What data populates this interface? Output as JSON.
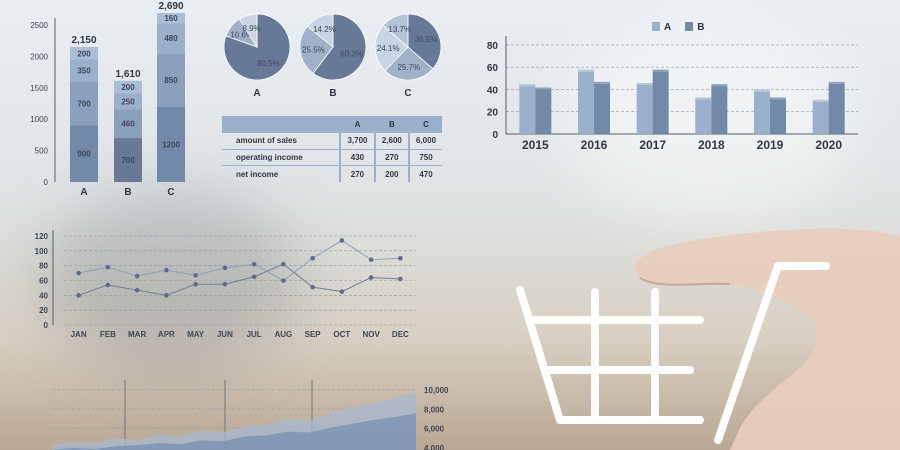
{
  "colors": {
    "bar_dark": "#7389a8",
    "bar_light": "#9ab0cb",
    "line_dark": "#5b6d8a",
    "pie_dark": "#667a98",
    "pie_light": "#9fb2ca",
    "pie_highlight": "#c9d5e4",
    "area_dark": "#7a92b3",
    "area_light": "#a7bad2",
    "basket": "#ffffff"
  },
  "icons": [
    "shopping-basket-icon",
    "hand-photo"
  ],
  "chart_data": [
    {
      "id": "stacked",
      "type": "bar",
      "stacked": true,
      "categories": [
        "A",
        "B",
        "C"
      ],
      "segments": [
        [
          900,
          700,
          350,
          200
        ],
        [
          700,
          460,
          250,
          200
        ],
        [
          1200,
          850,
          480,
          160
        ]
      ],
      "totals": [
        "2,150",
        "1,610",
        "2,690"
      ],
      "yticks": [
        "0",
        "500",
        "1000",
        "1500",
        "2000",
        "2500"
      ],
      "ylim": [
        0,
        2500
      ]
    },
    {
      "id": "pies",
      "type": "pie",
      "pies": [
        {
          "label": "A",
          "slices": [
            80.5,
            10.6,
            8.9
          ],
          "labels": [
            "80.5%",
            "10.6%",
            "8.9%"
          ]
        },
        {
          "label": "B",
          "slices": [
            60.3,
            25.5,
            14.2
          ],
          "labels": [
            "60.3%",
            "25.5%",
            "14.2%"
          ]
        },
        {
          "label": "C",
          "slices": [
            36.5,
            25.7,
            24.1,
            13.7
          ],
          "labels": [
            "36.5%",
            "25.7%",
            "24.1%",
            "13.7%"
          ]
        }
      ]
    },
    {
      "id": "table",
      "type": "table",
      "columns": [
        "",
        "A",
        "B",
        "C"
      ],
      "rows": [
        [
          "amount of sales",
          "3,700",
          "2,600",
          "6,000"
        ],
        [
          "operating income",
          "430",
          "270",
          "750"
        ],
        [
          "net income",
          "270",
          "200",
          "470"
        ]
      ]
    },
    {
      "id": "grouped",
      "type": "bar",
      "categories": [
        "2015",
        "2016",
        "2017",
        "2018",
        "2019",
        "2020"
      ],
      "series": [
        {
          "name": "A",
          "values": [
            43,
            56,
            44,
            31,
            38,
            29
          ]
        },
        {
          "name": "B",
          "values": [
            40,
            45,
            56,
            43,
            31,
            45
          ]
        }
      ],
      "yticks": [
        "0",
        "20",
        "40",
        "60",
        "80"
      ],
      "ylim": [
        0,
        88
      ],
      "legend": "top-right"
    },
    {
      "id": "line",
      "type": "line",
      "categories": [
        "JAN",
        "FEB",
        "MAR",
        "APR",
        "MAY",
        "JUN",
        "JUL",
        "AUG",
        "SEP",
        "OCT",
        "NOV",
        "DEC"
      ],
      "series": [
        {
          "values": [
            70,
            78,
            66,
            74,
            67,
            77,
            82,
            60,
            90,
            114,
            88,
            90
          ]
        },
        {
          "values": [
            40,
            54,
            47,
            40,
            55,
            55,
            65,
            82,
            51,
            45,
            64,
            62
          ]
        }
      ],
      "yticks": [
        "0",
        "20",
        "40",
        "60",
        "80",
        "100",
        "120"
      ],
      "ylim": [
        0,
        120
      ],
      "grid": true
    },
    {
      "id": "area",
      "type": "area",
      "yticks": [
        "4,000",
        "6,000",
        "8,000",
        "10,000"
      ],
      "ylim": [
        3000,
        10500
      ],
      "series": [
        {
          "values": [
            4300,
            4600,
            4500,
            5000,
            4800,
            5400,
            5200,
            5800,
            5600,
            6200,
            6400,
            7000,
            6800,
            7600,
            8200,
            8600,
            9200,
            9800
          ]
        },
        {
          "values": [
            3800,
            4000,
            3900,
            4200,
            4300,
            4500,
            4400,
            4800,
            4700,
            5200,
            5300,
            5700,
            5600,
            6100,
            6500,
            6900,
            7200,
            7600
          ]
        }
      ]
    }
  ]
}
